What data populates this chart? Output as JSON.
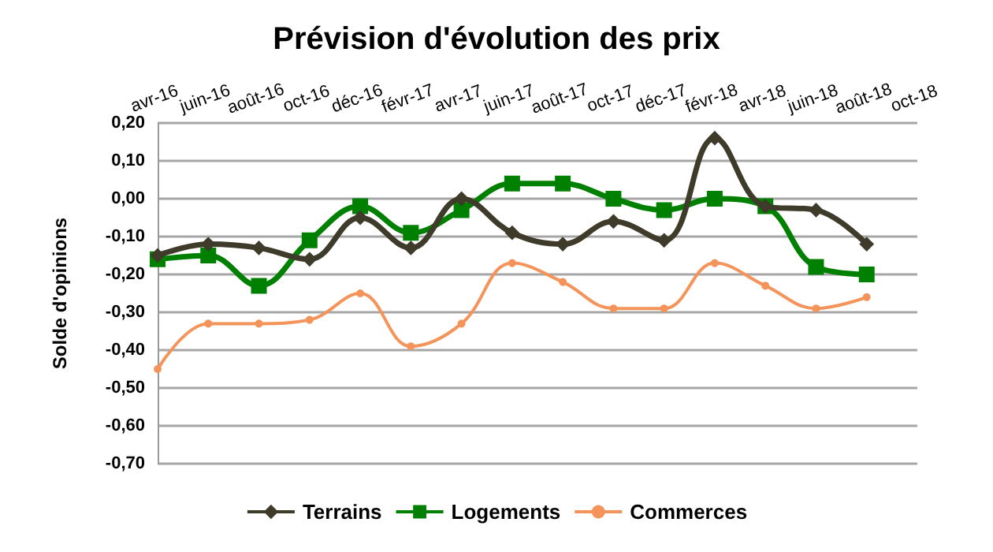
{
  "chart_data": {
    "type": "line",
    "title": "Prévision d'évolution des prix",
    "ylabel": "Solde d'opinions",
    "categories": [
      "avr-16",
      "juin-16",
      "août-16",
      "oct-16",
      "déc-16",
      "févr-17",
      "avr-17",
      "juin-17",
      "août-17",
      "oct-17",
      "déc-17",
      "févr-18",
      "avr-18",
      "juin-18",
      "août-18",
      "oct-18"
    ],
    "series": [
      {
        "name": "Terrains",
        "color": "#3f3b2b",
        "marker": "diamond",
        "values": [
          -0.15,
          -0.12,
          -0.13,
          -0.16,
          -0.05,
          -0.13,
          0.0,
          -0.09,
          -0.12,
          -0.06,
          -0.11,
          0.16,
          -0.02,
          -0.03,
          -0.12,
          null
        ]
      },
      {
        "name": "Logements",
        "color": "#008000",
        "marker": "square",
        "values": [
          -0.16,
          -0.15,
          -0.23,
          -0.11,
          -0.02,
          -0.09,
          -0.03,
          0.04,
          0.04,
          0.0,
          -0.03,
          0.0,
          -0.02,
          -0.18,
          -0.2,
          null
        ]
      },
      {
        "name": "Commerces",
        "color": "#f4935a",
        "marker": "circle",
        "values": [
          -0.45,
          -0.33,
          -0.33,
          -0.32,
          -0.25,
          -0.39,
          -0.33,
          -0.17,
          -0.22,
          -0.29,
          -0.29,
          -0.17,
          -0.23,
          -0.29,
          -0.26,
          null
        ]
      }
    ],
    "ylim": [
      -0.7,
      0.2
    ],
    "yticks": [
      {
        "value": -0.7,
        "label": "-0,70"
      },
      {
        "value": -0.6,
        "label": "-0,60"
      },
      {
        "value": -0.5,
        "label": "-0,50"
      },
      {
        "value": -0.4,
        "label": "-0,40"
      },
      {
        "value": -0.3,
        "label": "-0,30"
      },
      {
        "value": -0.2,
        "label": "-0,20"
      },
      {
        "value": -0.1,
        "label": "-0,10"
      },
      {
        "value": 0,
        "label": "0,00"
      },
      {
        "value": 0.1,
        "label": "0,10"
      },
      {
        "value": 0.2,
        "label": "0,20"
      }
    ],
    "grid": "y",
    "legend": "bottom"
  }
}
